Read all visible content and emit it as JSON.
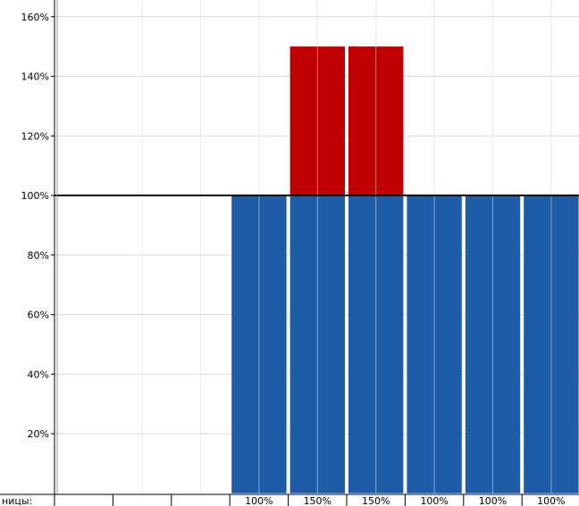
{
  "chart_data": {
    "type": "bar",
    "stacked": true,
    "row_header": "ницы:",
    "categories": [
      "",
      "",
      "",
      "100%",
      "150%",
      "150%",
      "100%",
      "100%",
      "100%"
    ],
    "series": [
      {
        "color": "#1f5ca8",
        "values": [
          0,
          0,
          0,
          100,
          100,
          100,
          100,
          100,
          100
        ]
      },
      {
        "color": "#c00000",
        "values": [
          0,
          0,
          0,
          0,
          50,
          50,
          0,
          0,
          0
        ]
      }
    ],
    "ylim": [
      0,
      160
    ],
    "yticks": [
      20,
      40,
      60,
      80,
      100,
      120,
      140,
      160
    ],
    "ytick_labels": [
      "20%",
      "40%",
      "60%",
      "80%",
      "100%",
      "120%",
      "140%",
      "160%"
    ],
    "reference_line": 100,
    "grid": true
  }
}
